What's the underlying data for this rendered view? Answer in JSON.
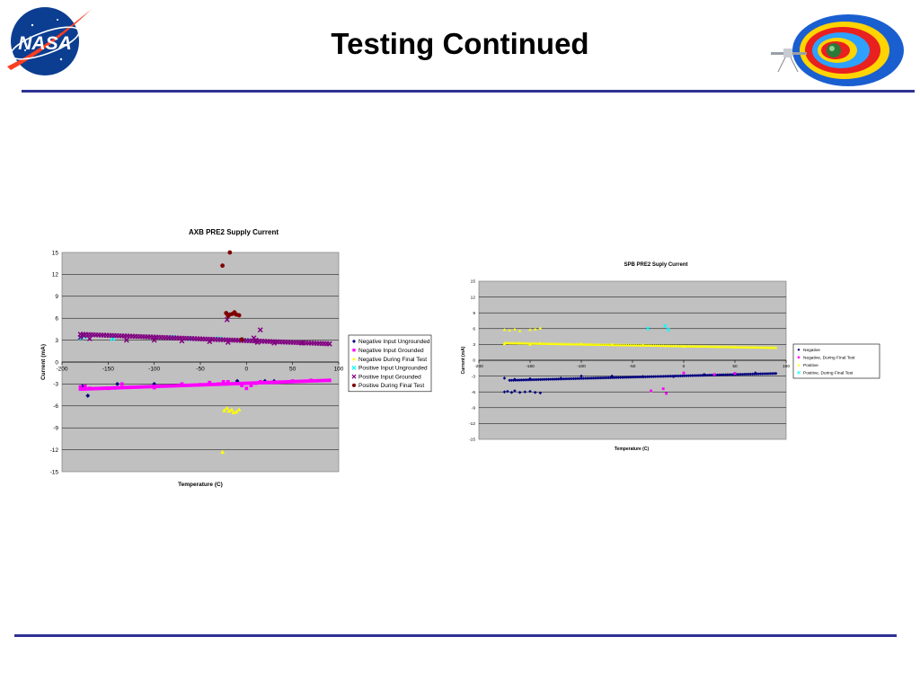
{
  "slide": {
    "title": "Testing Continued",
    "logo_text": "NASA",
    "colors": {
      "rule": "#2e3192",
      "plot_bg": "#c0c0c0"
    }
  },
  "chart_data": [
    {
      "type": "scatter",
      "title": "AXB PRE2 Supply Current",
      "xlabel": "Temperature (C)",
      "ylabel": "Current (mA)",
      "xlim": [
        -200,
        100
      ],
      "ylim": [
        -15,
        15
      ],
      "xticks": [
        -200,
        -150,
        -100,
        -50,
        0,
        50,
        100
      ],
      "yticks": [
        15,
        12,
        9,
        6,
        3,
        0,
        -3,
        -6,
        -9,
        -12,
        -15
      ],
      "grid": true,
      "legend_position": "right",
      "series": [
        {
          "name": "Negative Input Ungrounded",
          "marker": "diamond",
          "color": "#000080",
          "points": [
            [
              -178,
              -3.3
            ],
            [
              -176,
              -3.5
            ],
            [
              -172,
              -4.6
            ],
            [
              -140,
              -3.0
            ],
            [
              -100,
              -3.0
            ],
            [
              -10,
              -2.6
            ],
            [
              20,
              -2.6
            ],
            [
              30,
              -2.6
            ]
          ]
        },
        {
          "name": "Negative Input Grounded",
          "marker": "square",
          "color": "#ff00ff",
          "points": [
            [
              -180,
              -3.4
            ],
            [
              -175,
              -3.3
            ],
            [
              -170,
              -3.6
            ],
            [
              -150,
              -3.6
            ],
            [
              -135,
              -3.0
            ],
            [
              -100,
              -3.5
            ],
            [
              -70,
              -3.0
            ],
            [
              -50,
              -3.1
            ],
            [
              -40,
              -2.8
            ],
            [
              -30,
              -3.0
            ],
            [
              -25,
              -2.7
            ],
            [
              -20,
              -2.7
            ],
            [
              -5,
              -3.2
            ],
            [
              0,
              -3.6
            ],
            [
              5,
              -3.2
            ],
            [
              10,
              -2.9
            ],
            [
              15,
              -2.7
            ],
            [
              30,
              -2.8
            ],
            [
              50,
              -2.6
            ],
            [
              70,
              -2.5
            ],
            [
              90,
              -2.5
            ]
          ],
          "fit": {
            "x0": -180,
            "y0": -3.7,
            "x1": 90,
            "y1": -2.5
          }
        },
        {
          "name": "Negative During Final Test",
          "marker": "triangle",
          "color": "#ffff00",
          "points": [
            [
              -26,
              -12.3
            ],
            [
              -24,
              -6.6
            ],
            [
              -21,
              -6.3
            ],
            [
              -19,
              -6.7
            ],
            [
              -16,
              -6.5
            ],
            [
              -14,
              -6.9
            ],
            [
              -11,
              -6.8
            ],
            [
              -8,
              -6.5
            ]
          ]
        },
        {
          "name": "Positive Input Ungrounded",
          "marker": "x",
          "color": "#00ffff",
          "points": [
            [
              -180,
              3.3
            ],
            [
              -176,
              3.5
            ],
            [
              -145,
              3.2
            ],
            [
              -80,
              3.4
            ],
            [
              -60,
              3.2
            ],
            [
              -30,
              3.2
            ],
            [
              0,
              3.0
            ]
          ]
        },
        {
          "name": "Positive Input Grounded",
          "marker": "x",
          "color": "#800080",
          "points": [
            [
              -180,
              3.4
            ],
            [
              -176,
              3.6
            ],
            [
              -170,
              3.2
            ],
            [
              -130,
              3.0
            ],
            [
              -100,
              3.0
            ],
            [
              -70,
              2.9
            ],
            [
              -40,
              2.8
            ],
            [
              -20,
              2.7
            ],
            [
              -21,
              5.8
            ],
            [
              8,
              3.3
            ],
            [
              10,
              3.0
            ],
            [
              12,
              2.7
            ],
            [
              15,
              4.4
            ],
            [
              30,
              2.6
            ],
            [
              60,
              2.6
            ],
            [
              90,
              2.5
            ]
          ],
          "fit": {
            "x0": -180,
            "y0": 3.8,
            "x1": 90,
            "y1": 2.5
          }
        },
        {
          "name": "Positive During Final Test",
          "marker": "circle",
          "color": "#800000",
          "points": [
            [
              -26,
              13.2
            ],
            [
              -18,
              15.0
            ],
            [
              -22,
              6.7
            ],
            [
              -20,
              6.3
            ],
            [
              -18,
              6.5
            ],
            [
              -15,
              6.6
            ],
            [
              -13,
              6.8
            ],
            [
              -11,
              6.5
            ],
            [
              -8,
              6.4
            ],
            [
              -5,
              3.1
            ]
          ]
        }
      ]
    },
    {
      "type": "scatter",
      "title": "SPB PRE2 Suply Current",
      "xlabel": "Temperature (C)",
      "ylabel": "Current (mA)",
      "xlim": [
        -200,
        100
      ],
      "ylim": [
        -15,
        15
      ],
      "xticks": [
        -200,
        -150,
        -100,
        -50,
        0,
        50,
        100
      ],
      "yticks": [
        15,
        12,
        9,
        6,
        3,
        0,
        -3,
        -6,
        -9,
        -12,
        -15
      ],
      "grid": true,
      "legend_position": "right",
      "series": [
        {
          "name": "Negative",
          "marker": "diamond",
          "color": "#000080",
          "points": [
            [
              -175,
              -6.0
            ],
            [
              -172,
              -5.9
            ],
            [
              -168,
              -6.1
            ],
            [
              -165,
              -5.8
            ],
            [
              -160,
              -6.1
            ],
            [
              -155,
              -6.0
            ],
            [
              -150,
              -5.9
            ],
            [
              -145,
              -6.1
            ],
            [
              -140,
              -6.2
            ],
            [
              -175,
              -3.4
            ],
            [
              -165,
              -3.6
            ],
            [
              -150,
              -3.5
            ],
            [
              -120,
              -3.4
            ],
            [
              -100,
              -3.0
            ],
            [
              -70,
              -3.0
            ],
            [
              -40,
              -3.1
            ],
            [
              -10,
              -3.1
            ],
            [
              20,
              -2.7
            ],
            [
              50,
              -2.5
            ],
            [
              70,
              -2.4
            ]
          ],
          "fit": {
            "x0": -170,
            "y0": -3.8,
            "x1": 90,
            "y1": -2.5
          }
        },
        {
          "name": "Negative, During Final Test",
          "marker": "square",
          "color": "#ff00ff",
          "points": [
            [
              -32,
              -5.8
            ],
            [
              -20,
              -5.4
            ],
            [
              -17,
              -6.3
            ],
            [
              0,
              -2.4
            ],
            [
              30,
              -2.7
            ],
            [
              50,
              -2.5
            ]
          ]
        },
        {
          "name": "Positive",
          "marker": "triangle",
          "color": "#ffff00",
          "points": [
            [
              -175,
              5.8
            ],
            [
              -170,
              5.7
            ],
            [
              -165,
              5.9
            ],
            [
              -160,
              5.6
            ],
            [
              -150,
              5.8
            ],
            [
              -145,
              5.9
            ],
            [
              -140,
              6.1
            ],
            [
              -175,
              3.1
            ],
            [
              -160,
              3.3
            ],
            [
              -150,
              3.0
            ],
            [
              -140,
              3.2
            ],
            [
              -100,
              3.1
            ],
            [
              -70,
              3.0
            ],
            [
              -40,
              2.9
            ],
            [
              0,
              2.6
            ],
            [
              50,
              2.5
            ]
          ],
          "fit": {
            "x0": -175,
            "y0": 3.3,
            "x1": 90,
            "y1": 2.4
          }
        },
        {
          "name": "Positive, During Final Test",
          "marker": "x",
          "color": "#00ffff",
          "points": [
            [
              -35,
              6.0
            ],
            [
              -18,
              6.5
            ],
            [
              -15,
              5.8
            ]
          ]
        }
      ]
    }
  ]
}
